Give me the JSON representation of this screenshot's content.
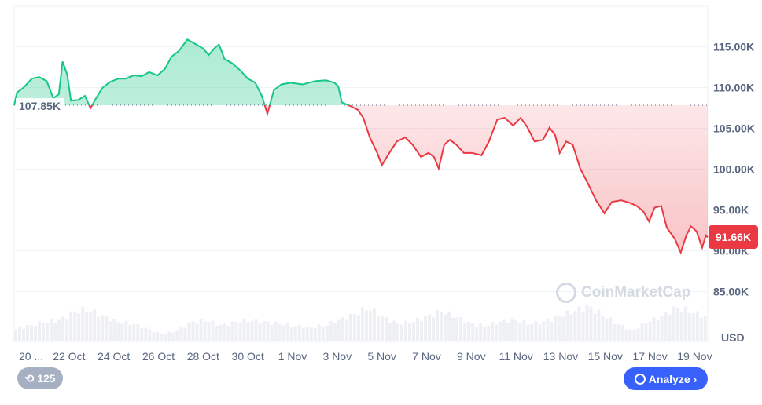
{
  "chart_data": {
    "type": "area",
    "currency_label": "USD",
    "baseline": 107.85,
    "baseline_label": "107.85K",
    "current_price": 91.66,
    "current_price_label": "91.66K",
    "ylim": [
      80,
      120
    ],
    "y_ticks": [
      {
        "v": 115,
        "label": "115.00K"
      },
      {
        "v": 110,
        "label": "110.00K"
      },
      {
        "v": 105,
        "label": "105.00K"
      },
      {
        "v": 100,
        "label": "100.00K"
      },
      {
        "v": 95,
        "label": "95.00K"
      },
      {
        "v": 90,
        "label": "90.00K"
      },
      {
        "v": 85,
        "label": "85.00K"
      }
    ],
    "x_range": [
      "Oct 19 13:00",
      "Nov 19 14:00"
    ],
    "x_ticks": [
      {
        "t": "Oct 20 00:00",
        "label": "20 ..."
      },
      {
        "t": "Oct 22 00:00",
        "label": "22 Oct"
      },
      {
        "t": "Oct 24 00:00",
        "label": "24 Oct"
      },
      {
        "t": "Oct 26 00:00",
        "label": "26 Oct"
      },
      {
        "t": "Oct 28 00:00",
        "label": "28 Oct"
      },
      {
        "t": "Oct 30 00:00",
        "label": "30 Oct"
      },
      {
        "t": "Nov 1 00:00",
        "label": "1 Nov"
      },
      {
        "t": "Nov 3 00:00",
        "label": "3 Nov"
      },
      {
        "t": "Nov 5 00:00",
        "label": "5 Nov"
      },
      {
        "t": "Nov 7 00:00",
        "label": "7 Nov"
      },
      {
        "t": "Nov 9 00:00",
        "label": "9 Nov"
      },
      {
        "t": "Nov 11 00:00",
        "label": "11 Nov"
      },
      {
        "t": "Nov 13 00:00",
        "label": "13 Nov"
      },
      {
        "t": "Nov 15 00:00",
        "label": "15 Nov"
      },
      {
        "t": "Nov 17 00:00",
        "label": "17 Nov"
      },
      {
        "t": "Nov 19 00:00",
        "label": "19 Nov"
      }
    ],
    "series": [
      {
        "points": [
          [
            "Oct 19 13:00",
            107.85
          ],
          [
            "Oct 19 16:00",
            109.4
          ],
          [
            "Oct 19 23:00",
            110.0
          ],
          [
            "Oct 20 08:00",
            111.1
          ],
          [
            "Oct 20 16:00",
            111.3
          ],
          [
            "Oct 21 00:00",
            110.8
          ],
          [
            "Oct 21 07:00",
            108.7
          ],
          [
            "Oct 21 13:00",
            109.2
          ],
          [
            "Oct 21 17:00",
            113.2
          ],
          [
            "Oct 21 22:00",
            111.6
          ],
          [
            "Oct 22 02:00",
            108.4
          ],
          [
            "Oct 22 10:00",
            108.5
          ],
          [
            "Oct 22 17:00",
            109.0
          ],
          [
            "Oct 22 23:00",
            107.5
          ],
          [
            "Oct 23 05:00",
            108.7
          ],
          [
            "Oct 23 12:00",
            110.0
          ],
          [
            "Oct 23 20:00",
            110.7
          ],
          [
            "Oct 24 05:00",
            111.1
          ],
          [
            "Oct 24 13:00",
            111.1
          ],
          [
            "Oct 24 21:00",
            111.5
          ],
          [
            "Oct 25 06:00",
            111.4
          ],
          [
            "Oct 25 14:00",
            111.9
          ],
          [
            "Oct 25 23:00",
            111.5
          ],
          [
            "Oct 26 07:00",
            112.3
          ],
          [
            "Oct 26 14:00",
            113.8
          ],
          [
            "Oct 26 22:00",
            114.5
          ],
          [
            "Oct 27 07:00",
            115.9
          ],
          [
            "Oct 27 15:00",
            115.4
          ],
          [
            "Oct 28 00:00",
            114.8
          ],
          [
            "Oct 28 06:00",
            114.0
          ],
          [
            "Oct 28 12:00",
            114.8
          ],
          [
            "Oct 28 17:00",
            115.3
          ],
          [
            "Oct 28 23:00",
            113.5
          ],
          [
            "Oct 29 07:00",
            113.0
          ],
          [
            "Oct 29 16:00",
            112.1
          ],
          [
            "Oct 30 00:00",
            111.1
          ],
          [
            "Oct 30 08:00",
            110.6
          ],
          [
            "Oct 30 15:00",
            109.0
          ],
          [
            "Oct 30 21:00",
            106.8
          ],
          [
            "Oct 31 04:00",
            109.7
          ],
          [
            "Oct 31 12:00",
            110.4
          ],
          [
            "Oct 31 22:00",
            110.6
          ],
          [
            "Nov 1 11:00",
            110.4
          ],
          [
            "Nov 2 00:00",
            110.8
          ],
          [
            "Nov 2 12:00",
            110.9
          ],
          [
            "Nov 2 21:00",
            110.6
          ],
          [
            "Nov 3 01:00",
            110.2
          ],
          [
            "Nov 3 05:00",
            108.2
          ],
          [
            "Nov 3 14:00",
            107.75
          ],
          [
            "Nov 3 22:00",
            107.3
          ],
          [
            "Nov 4 04:00",
            106.3
          ],
          [
            "Nov 4 11:00",
            103.9
          ],
          [
            "Nov 4 19:00",
            102.0
          ],
          [
            "Nov 5 00:00",
            100.5
          ],
          [
            "Nov 5 08:00",
            102.0
          ],
          [
            "Nov 5 16:00",
            103.4
          ],
          [
            "Nov 6 01:00",
            103.9
          ],
          [
            "Nov 6 09:00",
            103.0
          ],
          [
            "Nov 6 18:00",
            101.5
          ],
          [
            "Nov 7 02:00",
            102.0
          ],
          [
            "Nov 7 08:00",
            101.5
          ],
          [
            "Nov 7 13:00",
            100.1
          ],
          [
            "Nov 7 19:00",
            103.0
          ],
          [
            "Nov 8 01:00",
            103.6
          ],
          [
            "Nov 8 08:00",
            103.0
          ],
          [
            "Nov 8 16:00",
            102.0
          ],
          [
            "Nov 9 01:00",
            102.0
          ],
          [
            "Nov 9 11:00",
            101.7
          ],
          [
            "Nov 9 19:00",
            103.4
          ],
          [
            "Nov 10 04:00",
            106.1
          ],
          [
            "Nov 10 12:00",
            106.3
          ],
          [
            "Nov 10 21:00",
            105.35
          ],
          [
            "Nov 11 05:00",
            106.3
          ],
          [
            "Nov 11 12:00",
            105.2
          ],
          [
            "Nov 11 20:00",
            103.4
          ],
          [
            "Nov 12 05:00",
            103.6
          ],
          [
            "Nov 12 12:00",
            105.1
          ],
          [
            "Nov 12 18:00",
            104.2
          ],
          [
            "Nov 12 23:00",
            102.0
          ],
          [
            "Nov 13 06:00",
            103.4
          ],
          [
            "Nov 13 13:00",
            103.0
          ],
          [
            "Nov 13 21:00",
            100.1
          ],
          [
            "Nov 14 06:00",
            98.1
          ],
          [
            "Nov 14 14:00",
            96.2
          ],
          [
            "Nov 14 23:00",
            94.6
          ],
          [
            "Nov 15 07:00",
            96.0
          ],
          [
            "Nov 15 17:00",
            96.2
          ],
          [
            "Nov 16 02:00",
            95.9
          ],
          [
            "Nov 16 10:00",
            95.5
          ],
          [
            "Nov 16 17:00",
            94.8
          ],
          [
            "Nov 16 23:00",
            93.6
          ],
          [
            "Nov 17 05:00",
            95.3
          ],
          [
            "Nov 17 12:00",
            95.5
          ],
          [
            "Nov 17 18:00",
            92.85
          ],
          [
            "Nov 18 03:00",
            91.4
          ],
          [
            "Nov 18 09:00",
            89.8
          ],
          [
            "Nov 18 15:00",
            91.9
          ],
          [
            "Nov 18 20:00",
            93.0
          ],
          [
            "Nov 19 02:00",
            92.4
          ],
          [
            "Nov 19 08:00",
            90.4
          ],
          [
            "Nov 19 12:00",
            91.9
          ],
          [
            "Nov 19 14:00",
            91.66
          ]
        ]
      }
    ],
    "volume_profile": [
      0.35,
      0.45,
      0.55,
      0.6,
      0.85,
      0.9,
      0.7,
      0.55,
      0.5,
      0.35,
      0.2,
      0.3,
      0.55,
      0.6,
      0.45,
      0.55,
      0.6,
      0.55,
      0.5,
      0.45,
      0.4,
      0.45,
      0.6,
      0.75,
      0.95,
      0.7,
      0.5,
      0.55,
      0.7,
      0.85,
      0.7,
      0.5,
      0.45,
      0.55,
      0.6,
      0.5,
      0.55,
      0.7,
      0.85,
      1.0,
      0.75,
      0.5,
      0.3,
      0.55,
      0.7,
      0.95,
      0.85,
      0.7
    ],
    "colors": {
      "up": "#16c784",
      "down": "#ea3943",
      "grid": "#eff2f5",
      "text": "#58667e"
    }
  },
  "controls": {
    "history_count": "125",
    "analyze_label": "Analyze"
  },
  "watermark": "CoinMarketCap"
}
